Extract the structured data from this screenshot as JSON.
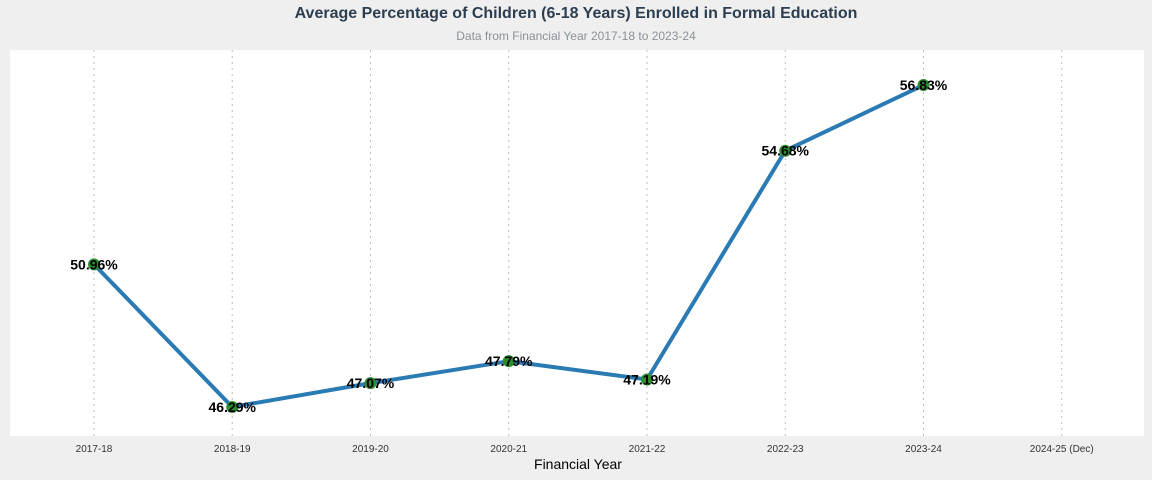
{
  "chart_data": {
    "type": "line",
    "title": "Average Percentage of Children (6-18 Years) Enrolled in Formal Education",
    "subtitle": "Data from Financial Year 2017-18 to 2023-24",
    "xlabel": "Financial Year",
    "ylabel": "",
    "categories": [
      "2017-18",
      "2018-19",
      "2019-20",
      "2020-21",
      "2021-22",
      "2022-23",
      "2023-24",
      "2024-25 (Dec)"
    ],
    "series": [
      {
        "values": [
          50.96,
          46.29,
          47.07,
          47.79,
          47.19,
          54.68,
          56.83,
          null
        ],
        "labels": [
          "50.96%",
          "46.29%",
          "47.07%",
          "47.79%",
          "47.19%",
          "54.68%",
          "56.83%",
          ""
        ]
      }
    ],
    "ylim": [
      45.7,
      57.65
    ],
    "grid": "vertical-dotted",
    "colors": {
      "line": "#2a7ab4",
      "marker": "#2e8b2e",
      "plot_bg": "#ffffff",
      "page_bg": "#efefef"
    }
  }
}
